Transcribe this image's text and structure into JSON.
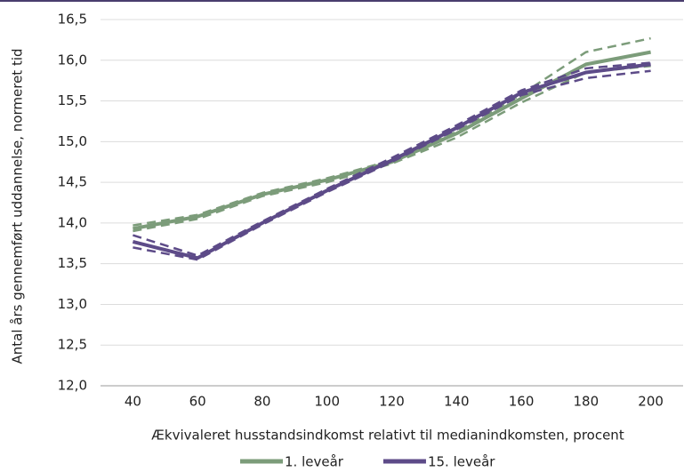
{
  "chart_data": {
    "type": "line",
    "x_label": "Ækvivaleret husstandsindkomst relativt til medianindkomsten, procent",
    "y_label": "Antal års gennemført uddannelse, normeret tid",
    "categories": [
      "40",
      "60",
      "80",
      "100",
      "120",
      "140",
      "160",
      "180",
      "200"
    ],
    "series": [
      {
        "name": "1. leveår",
        "color": "#7c9c7a",
        "values": [
          13.93,
          14.08,
          14.35,
          14.53,
          14.75,
          15.1,
          15.53,
          15.95,
          16.1
        ]
      },
      {
        "color": "#7c9c7a",
        "dashed": true,
        "values": [
          13.97,
          14.1,
          14.37,
          14.55,
          14.77,
          15.12,
          15.58,
          16.1,
          16.27
        ]
      },
      {
        "color": "#7c9c7a",
        "dashed": true,
        "values": [
          13.9,
          14.05,
          14.33,
          14.5,
          14.73,
          15.05,
          15.48,
          15.85,
          15.93
        ]
      },
      {
        "name": "15. leveår",
        "color": "#5d4b88",
        "values": [
          13.77,
          13.57,
          14.0,
          14.4,
          14.77,
          15.17,
          15.6,
          15.85,
          15.95
        ]
      },
      {
        "color": "#5d4b88",
        "dashed": true,
        "values": [
          13.85,
          13.6,
          14.02,
          14.42,
          14.8,
          15.2,
          15.63,
          15.9,
          15.97
        ]
      },
      {
        "color": "#5d4b88",
        "dashed": true,
        "values": [
          13.7,
          13.55,
          13.98,
          14.38,
          14.75,
          15.15,
          15.57,
          15.78,
          15.87
        ]
      }
    ],
    "ylim": [
      12.0,
      16.5
    ],
    "yticks": [
      {
        "value": 12.0,
        "label": "12,0"
      },
      {
        "value": 12.5,
        "label": "12,5"
      },
      {
        "value": 13.0,
        "label": "13,0"
      },
      {
        "value": 13.5,
        "label": "13,5"
      },
      {
        "value": 14.0,
        "label": "14,0"
      },
      {
        "value": 14.5,
        "label": "14,5"
      },
      {
        "value": 15.0,
        "label": "15,0"
      },
      {
        "value": 15.5,
        "label": "15,5"
      },
      {
        "value": 16.0,
        "label": "16,0"
      },
      {
        "value": 16.5,
        "label": "16,5"
      }
    ],
    "grid": true
  }
}
